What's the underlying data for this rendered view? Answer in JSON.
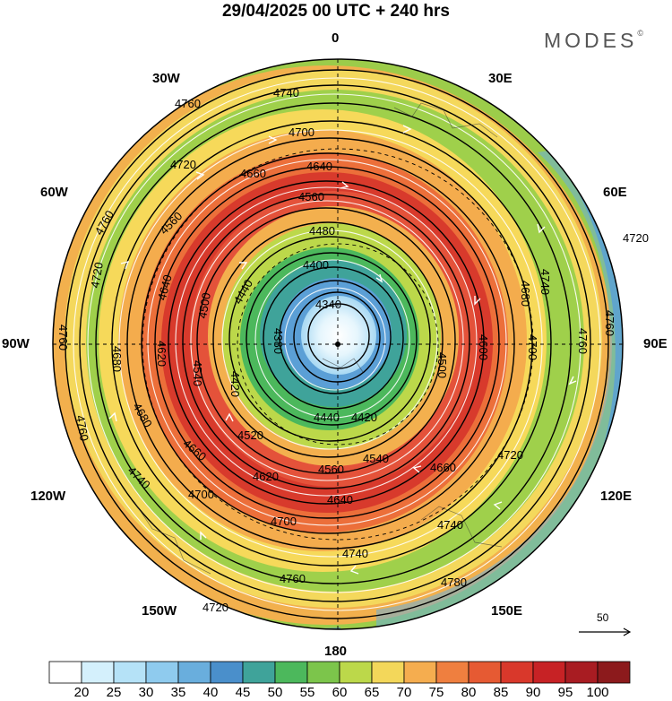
{
  "title": "29/04/2025  00 UTC  + 240 hrs",
  "brand": "MODES",
  "brand_mark": "©",
  "longitude_labels": {
    "lon_0": "0",
    "lon_30e": "30E",
    "lon_60e": "60E",
    "lon_90e": "90E",
    "lon_120e": "120E",
    "lon_150e": "150E",
    "lon_180": "180",
    "lon_150w": "150W",
    "lon_120w": "120W",
    "lon_90w": "90W",
    "lon_60w": "60W",
    "lon_30w": "30W"
  },
  "contours": [
    "4340",
    "4380",
    "4400",
    "4420",
    "4440",
    "4480",
    "4500",
    "4520",
    "4540",
    "4560",
    "4600",
    "4620",
    "4640",
    "4660",
    "4680",
    "4700",
    "4720",
    "4740",
    "4760",
    "4780"
  ],
  "contour_labels_shown": [
    "4340",
    "4380",
    "4400",
    "4440",
    "4480",
    "4560",
    "4640",
    "4660",
    "4700",
    "4740",
    "4760",
    "4720",
    "4680",
    "4600",
    "4500",
    "4520",
    "4620",
    "4420",
    "4780",
    "4540"
  ],
  "reference_vector": "50",
  "colorbar": {
    "ticks": [
      "20",
      "25",
      "30",
      "35",
      "40",
      "45",
      "50",
      "55",
      "60",
      "65",
      "70",
      "75",
      "80",
      "85",
      "90",
      "95",
      "100"
    ],
    "colors": [
      "#ffffff",
      "#d4f0fc",
      "#b5e2f7",
      "#8fcbee",
      "#69aedd",
      "#4a8fcb",
      "#3fa39a",
      "#4cb85c",
      "#7cc54b",
      "#bcd84a",
      "#f3d75a",
      "#f5ad4f",
      "#ef7f3f",
      "#e65a33",
      "#d9382b",
      "#c72225",
      "#a81c22",
      "#8c1a1c"
    ]
  }
}
